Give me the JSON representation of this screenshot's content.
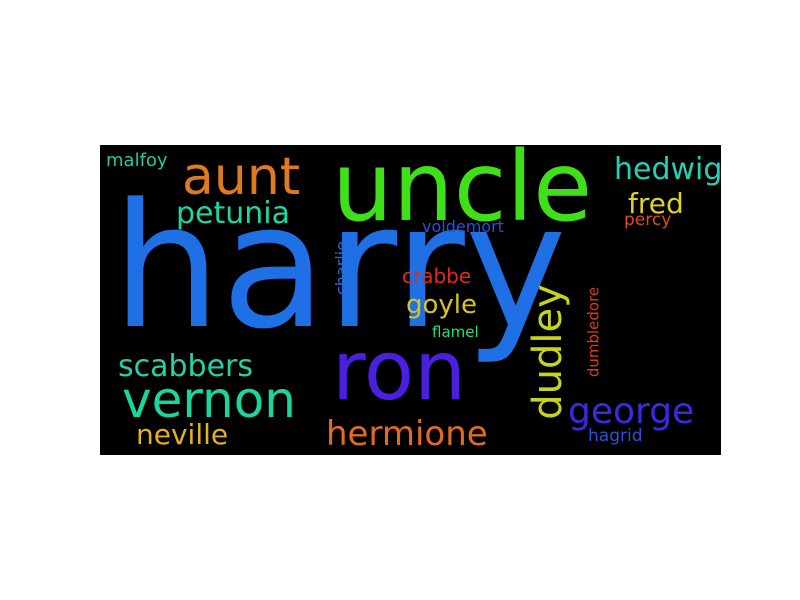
{
  "wordcloud": {
    "background": "#000000",
    "words": [
      {
        "key": "harry",
        "text": "harry",
        "color": "#1f6fe5"
      },
      {
        "key": "uncle",
        "text": "uncle",
        "color": "#3fe01a"
      },
      {
        "key": "aunt",
        "text": "aunt",
        "color": "#e07a1e"
      },
      {
        "key": "ron",
        "text": "ron",
        "color": "#4b1ee0"
      },
      {
        "key": "vernon",
        "text": "vernon",
        "color": "#1ad69a"
      },
      {
        "key": "hermione",
        "text": "hermione",
        "color": "#e56a1e"
      },
      {
        "key": "dudley",
        "text": "dudley",
        "color": "#c8d41a"
      },
      {
        "key": "george",
        "text": "george",
        "color": "#3a2ae0"
      },
      {
        "key": "petunia",
        "text": "petunia",
        "color": "#1fd69f"
      },
      {
        "key": "scabbers",
        "text": "scabbers",
        "color": "#25d0a8"
      },
      {
        "key": "neville",
        "text": "neville",
        "color": "#e5b01e"
      },
      {
        "key": "hedwig",
        "text": "hedwig",
        "color": "#22d2b6"
      },
      {
        "key": "fred",
        "text": "fred",
        "color": "#e0d21e"
      },
      {
        "key": "crabbe",
        "text": "crabbe",
        "color": "#e02a1e"
      },
      {
        "key": "goyle",
        "text": "goyle",
        "color": "#d8c41a"
      },
      {
        "key": "malfoy",
        "text": "malfoy",
        "color": "#23c9a6"
      },
      {
        "key": "percy",
        "text": "percy",
        "color": "#e04a1e"
      },
      {
        "key": "voldemort",
        "text": "voldemort",
        "color": "#2a4ee0"
      },
      {
        "key": "charlie",
        "text": "charlie",
        "color": "#2a6ad0"
      },
      {
        "key": "flamel",
        "text": "flamel",
        "color": "#22e07a"
      },
      {
        "key": "dumbledore",
        "text": "dumbledore",
        "color": "#e03a1e"
      },
      {
        "key": "hagrid",
        "text": "hagrid",
        "color": "#2a52d8"
      }
    ]
  }
}
